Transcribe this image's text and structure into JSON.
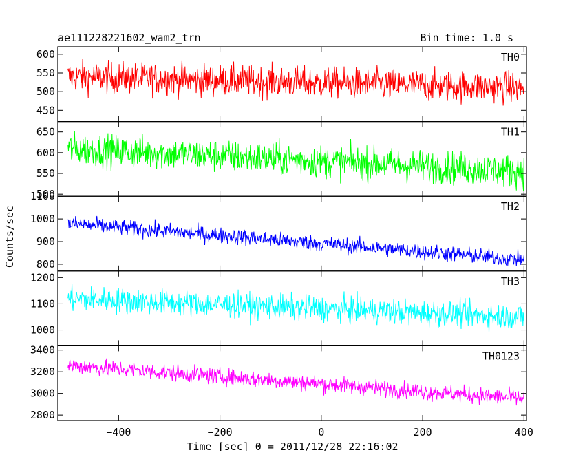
{
  "chart_data": {
    "type": "line",
    "title_left": "ae111228221602_wam2_trn",
    "title_right": "Bin time: 1.0 s",
    "xlabel": "Time [sec] 0 = 2011/12/28 22:16:02",
    "ylabel": "Counts/sec",
    "xlim": [
      -520,
      405
    ],
    "x_ticks": [
      -400,
      -200,
      0,
      200,
      400
    ],
    "x_tick_labels": [
      "−400",
      "−200",
      "0",
      "200",
      "400"
    ],
    "x_range": [
      -500,
      400
    ],
    "x_step": 1,
    "grid": false,
    "panels": [
      {
        "name": "TH0",
        "color": "#ff0000",
        "ylim": [
          420,
          620
        ],
        "yticks": [
          450,
          500,
          550,
          600
        ],
        "trend": [
          [
            -500,
            540
          ],
          [
            400,
            510
          ]
        ],
        "noise": 30
      },
      {
        "name": "TH1",
        "color": "#00ff00",
        "ylim": [
          495,
          675
        ],
        "yticks": [
          500,
          550,
          600,
          650
        ],
        "trend": [
          [
            -500,
            610
          ],
          [
            400,
            555
          ]
        ],
        "noise": 28
      },
      {
        "name": "TH2",
        "color": "#0000ff",
        "ylim": [
          770,
          1100
        ],
        "yticks": [
          800,
          900,
          1000,
          1100
        ],
        "trend": [
          [
            -500,
            980
          ],
          [
            400,
            820
          ]
        ],
        "noise": 25
      },
      {
        "name": "TH3",
        "color": "#00ffff",
        "ylim": [
          940,
          1225
        ],
        "yticks": [
          1000,
          1100,
          1200
        ],
        "trend": [
          [
            -500,
            1120
          ],
          [
            400,
            1050
          ]
        ],
        "noise": 35
      },
      {
        "name": "TH0123",
        "color": "#ff00ff",
        "ylim": [
          2750,
          3440
        ],
        "yticks": [
          2800,
          3000,
          3200,
          3400
        ],
        "trend": [
          [
            -500,
            3260
          ],
          [
            400,
            2950
          ]
        ],
        "noise": 55
      }
    ]
  }
}
